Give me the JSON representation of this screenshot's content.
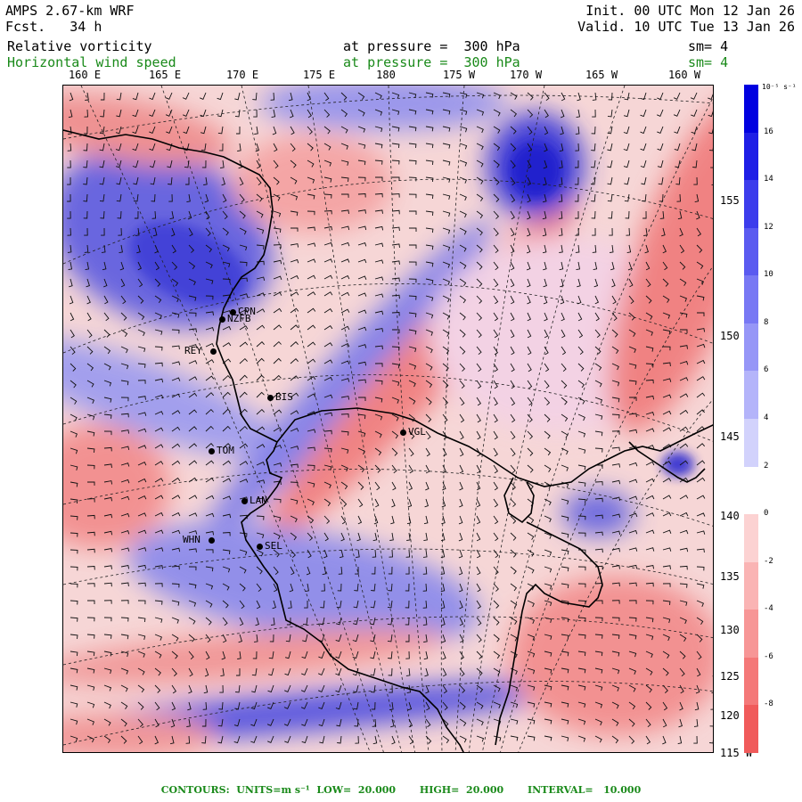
{
  "header": {
    "model": "AMPS 2.67-km WRF",
    "fcst_label": "Fcst.",
    "fcst_value": "34 h",
    "init": "Init. 00 UTC Mon 12 Jan 26",
    "valid": "Valid. 10 UTC Tue 13 Jan 26",
    "field1_name": "Relative vorticity",
    "field1_level": "at pressure =  300 hPa",
    "field1_sm": "sm= 4",
    "field2_name": "Horizontal wind speed",
    "field2_level": "at pressure =  300 hPa",
    "field2_sm": "sm= 4"
  },
  "longitude_labels": [
    "160 E",
    "165 E",
    "170 E",
    "175 E",
    "180",
    "175 W",
    "170 W",
    "165 W",
    "160 W"
  ],
  "latitude_labels": [
    "155 W",
    "150 W",
    "145 W",
    "140 W",
    "135 W",
    "130 W",
    "125 W",
    "120 W",
    "115 W"
  ],
  "stations": [
    "CPN",
    "NZFB",
    "REY",
    "BIS",
    "VGL",
    "TOM",
    "LAN",
    "WHN",
    "SEL"
  ],
  "colorbar": {
    "unit": "10⁻⁵ s⁻¹",
    "ticks": [
      "16",
      "14",
      "12",
      "10",
      "8",
      "6",
      "4",
      "2",
      "0",
      "-2",
      "-4",
      "-6",
      "-8"
    ],
    "colors": [
      "#0000e0",
      "#1e1ee6",
      "#3c3cec",
      "#5a5af0",
      "#7878f4",
      "#9696f7",
      "#b4b4fa",
      "#d2d2fc",
      "#ffffff",
      "#fcd2d2",
      "#fab4b4",
      "#f79696",
      "#f47878",
      "#f05a5a"
    ]
  },
  "footer": "CONTOURS:  UNITS=m s⁻¹  LOW=  20.000       HIGH=  20.000       INTERVAL=   10.000"
}
